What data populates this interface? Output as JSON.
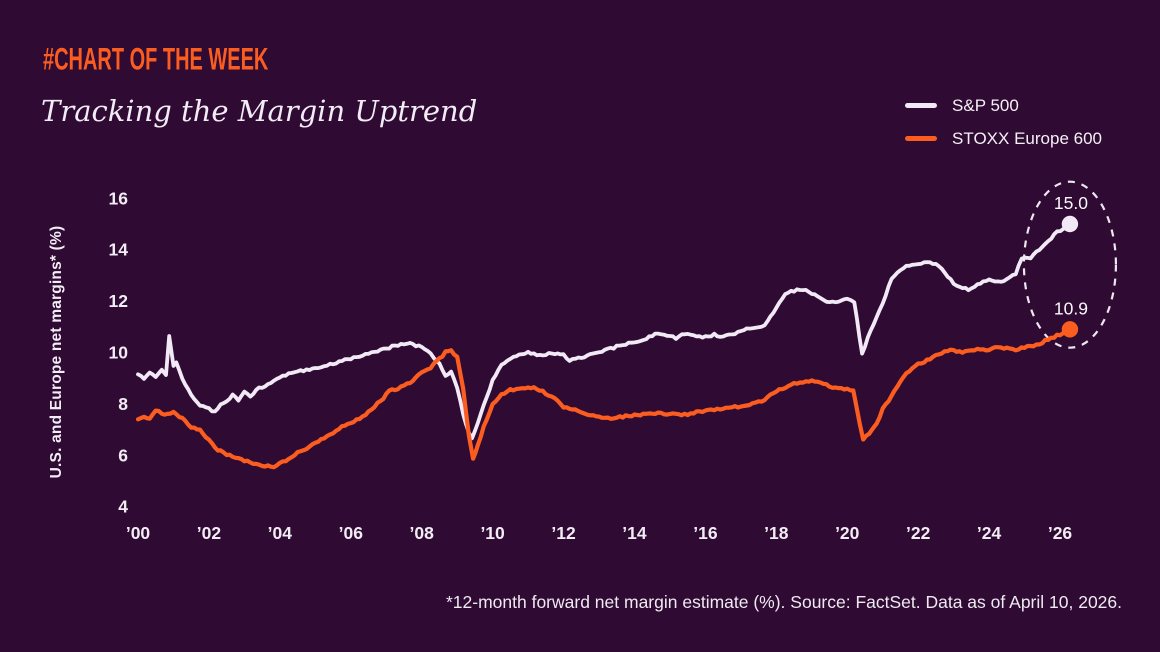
{
  "header": {
    "kicker": "#CHART OF THE WEEK",
    "title": "Tracking the Margin Uptrend"
  },
  "legend": {
    "items": [
      {
        "label": "S&P 500",
        "color": "#F2E9F7"
      },
      {
        "label": "STOXX Europe 600",
        "color": "#FB5D20"
      }
    ]
  },
  "footer": {
    "note": "*12-month forward net margin estimate (%). Source: FactSet. Data as of April 10, 2026."
  },
  "colors": {
    "background": "#2F0A33",
    "accent_orange": "#FB5D20",
    "line_white": "#F2E9F7",
    "text_light": "#F2ECF4",
    "ellipse_stroke": "#EDE7F2"
  },
  "chart_data": {
    "type": "line",
    "title": "Tracking the Margin Uptrend",
    "xlabel": "",
    "ylabel": "U.S. and Europe net margins* (%)",
    "xlim": [
      2000,
      2026.4
    ],
    "ylim": [
      4,
      16
    ],
    "grid": false,
    "legend_position": "top-right",
    "x_ticks": {
      "values": [
        2000,
        2002,
        2004,
        2006,
        2008,
        2010,
        2012,
        2014,
        2016,
        2018,
        2020,
        2022,
        2024,
        2026
      ],
      "labels": [
        "’00",
        "’02",
        "’04",
        "’06",
        "’08",
        "’10",
        "’12",
        "’14",
        "’16",
        "’18",
        "’20",
        "’22",
        "’24",
        "’26"
      ]
    },
    "y_ticks": [
      4,
      6,
      8,
      10,
      12,
      14,
      16
    ],
    "annotation": {
      "shape": "dashed-ellipse",
      "meaning": "highlights latest values"
    },
    "series": [
      {
        "name": "S&P 500",
        "color": "#F2E9F7",
        "end_label": "15.0",
        "end_value": 15.0,
        "points": [
          [
            2000.0,
            9.15
          ],
          [
            2000.17,
            9.0
          ],
          [
            2000.33,
            9.25
          ],
          [
            2000.5,
            9.05
          ],
          [
            2000.67,
            9.3
          ],
          [
            2000.79,
            9.1
          ],
          [
            2000.88,
            10.6
          ],
          [
            2001.0,
            9.5
          ],
          [
            2001.08,
            9.6
          ],
          [
            2001.25,
            9.0
          ],
          [
            2001.5,
            8.35
          ],
          [
            2001.75,
            7.95
          ],
          [
            2002.0,
            7.8
          ],
          [
            2002.17,
            7.7
          ],
          [
            2002.33,
            7.95
          ],
          [
            2002.5,
            8.1
          ],
          [
            2002.67,
            8.35
          ],
          [
            2002.83,
            8.15
          ],
          [
            2003.0,
            8.45
          ],
          [
            2003.17,
            8.25
          ],
          [
            2003.33,
            8.55
          ],
          [
            2003.58,
            8.7
          ],
          [
            2003.83,
            8.9
          ],
          [
            2004.0,
            9.05
          ],
          [
            2004.33,
            9.2
          ],
          [
            2004.67,
            9.3
          ],
          [
            2005.0,
            9.4
          ],
          [
            2005.33,
            9.5
          ],
          [
            2005.67,
            9.65
          ],
          [
            2006.0,
            9.75
          ],
          [
            2006.33,
            9.9
          ],
          [
            2006.67,
            10.05
          ],
          [
            2007.0,
            10.15
          ],
          [
            2007.33,
            10.3
          ],
          [
            2007.67,
            10.35
          ],
          [
            2008.0,
            10.2
          ],
          [
            2008.25,
            9.95
          ],
          [
            2008.5,
            9.55
          ],
          [
            2008.67,
            9.1
          ],
          [
            2008.83,
            9.25
          ],
          [
            2009.0,
            8.65
          ],
          [
            2009.17,
            7.6
          ],
          [
            2009.33,
            6.85
          ],
          [
            2009.42,
            6.65
          ],
          [
            2009.58,
            7.25
          ],
          [
            2009.75,
            7.95
          ],
          [
            2010.0,
            8.9
          ],
          [
            2010.25,
            9.5
          ],
          [
            2010.5,
            9.75
          ],
          [
            2010.75,
            9.9
          ],
          [
            2011.0,
            10.0
          ],
          [
            2011.33,
            9.9
          ],
          [
            2011.67,
            9.95
          ],
          [
            2012.0,
            9.9
          ],
          [
            2012.17,
            9.7
          ],
          [
            2012.42,
            9.8
          ],
          [
            2012.75,
            9.9
          ],
          [
            2013.0,
            10.0
          ],
          [
            2013.33,
            10.15
          ],
          [
            2013.67,
            10.3
          ],
          [
            2014.0,
            10.4
          ],
          [
            2014.33,
            10.55
          ],
          [
            2014.67,
            10.75
          ],
          [
            2015.0,
            10.65
          ],
          [
            2015.17,
            10.55
          ],
          [
            2015.42,
            10.75
          ],
          [
            2015.75,
            10.65
          ],
          [
            2016.0,
            10.6
          ],
          [
            2016.25,
            10.7
          ],
          [
            2016.5,
            10.6
          ],
          [
            2016.75,
            10.7
          ],
          [
            2017.0,
            10.85
          ],
          [
            2017.33,
            10.95
          ],
          [
            2017.67,
            11.05
          ],
          [
            2018.0,
            11.75
          ],
          [
            2018.25,
            12.3
          ],
          [
            2018.5,
            12.4
          ],
          [
            2018.75,
            12.45
          ],
          [
            2019.0,
            12.3
          ],
          [
            2019.25,
            12.1
          ],
          [
            2019.5,
            11.95
          ],
          [
            2019.75,
            12.0
          ],
          [
            2020.0,
            12.05
          ],
          [
            2020.2,
            11.95
          ],
          [
            2020.42,
            9.95
          ],
          [
            2020.58,
            10.55
          ],
          [
            2020.75,
            11.15
          ],
          [
            2021.0,
            11.9
          ],
          [
            2021.25,
            12.9
          ],
          [
            2021.5,
            13.2
          ],
          [
            2021.75,
            13.4
          ],
          [
            2022.0,
            13.45
          ],
          [
            2022.25,
            13.5
          ],
          [
            2022.5,
            13.45
          ],
          [
            2022.75,
            13.1
          ],
          [
            2023.0,
            12.7
          ],
          [
            2023.25,
            12.5
          ],
          [
            2023.42,
            12.45
          ],
          [
            2023.67,
            12.65
          ],
          [
            2024.0,
            12.85
          ],
          [
            2024.25,
            12.75
          ],
          [
            2024.5,
            12.85
          ],
          [
            2024.75,
            13.05
          ],
          [
            2024.92,
            13.65
          ],
          [
            2025.17,
            13.7
          ],
          [
            2025.42,
            14.0
          ],
          [
            2025.67,
            14.35
          ],
          [
            2025.92,
            14.7
          ],
          [
            2026.1,
            14.8
          ],
          [
            2026.28,
            15.0
          ]
        ]
      },
      {
        "name": "STOXX Europe 600",
        "color": "#FB5D20",
        "end_label": "10.9",
        "end_value": 10.9,
        "points": [
          [
            2000.0,
            7.4
          ],
          [
            2000.17,
            7.5
          ],
          [
            2000.33,
            7.45
          ],
          [
            2000.5,
            7.75
          ],
          [
            2000.67,
            7.65
          ],
          [
            2000.83,
            7.6
          ],
          [
            2001.0,
            7.65
          ],
          [
            2001.17,
            7.5
          ],
          [
            2001.33,
            7.35
          ],
          [
            2001.5,
            7.1
          ],
          [
            2001.75,
            7.0
          ],
          [
            2002.0,
            6.6
          ],
          [
            2002.17,
            6.3
          ],
          [
            2002.33,
            6.15
          ],
          [
            2002.5,
            6.05
          ],
          [
            2002.75,
            5.9
          ],
          [
            2003.0,
            5.8
          ],
          [
            2003.25,
            5.65
          ],
          [
            2003.5,
            5.6
          ],
          [
            2003.83,
            5.55
          ],
          [
            2004.0,
            5.7
          ],
          [
            2004.25,
            5.85
          ],
          [
            2004.5,
            6.1
          ],
          [
            2004.75,
            6.25
          ],
          [
            2005.0,
            6.5
          ],
          [
            2005.25,
            6.65
          ],
          [
            2005.5,
            6.85
          ],
          [
            2005.75,
            7.1
          ],
          [
            2006.0,
            7.25
          ],
          [
            2006.33,
            7.5
          ],
          [
            2006.67,
            7.9
          ],
          [
            2006.92,
            8.2
          ],
          [
            2007.08,
            8.5
          ],
          [
            2007.33,
            8.6
          ],
          [
            2007.67,
            8.85
          ],
          [
            2008.0,
            9.2
          ],
          [
            2008.25,
            9.4
          ],
          [
            2008.5,
            9.75
          ],
          [
            2008.67,
            10.0
          ],
          [
            2008.83,
            10.1
          ],
          [
            2009.0,
            9.8
          ],
          [
            2009.17,
            8.6
          ],
          [
            2009.33,
            6.8
          ],
          [
            2009.45,
            5.9
          ],
          [
            2009.58,
            6.35
          ],
          [
            2009.75,
            7.1
          ],
          [
            2010.0,
            8.0
          ],
          [
            2010.25,
            8.35
          ],
          [
            2010.5,
            8.55
          ],
          [
            2010.75,
            8.6
          ],
          [
            2011.08,
            8.65
          ],
          [
            2011.33,
            8.55
          ],
          [
            2011.58,
            8.35
          ],
          [
            2011.83,
            8.1
          ],
          [
            2012.0,
            7.9
          ],
          [
            2012.33,
            7.75
          ],
          [
            2012.67,
            7.6
          ],
          [
            2013.0,
            7.5
          ],
          [
            2013.33,
            7.45
          ],
          [
            2013.67,
            7.5
          ],
          [
            2014.0,
            7.55
          ],
          [
            2014.33,
            7.6
          ],
          [
            2014.67,
            7.65
          ],
          [
            2015.0,
            7.6
          ],
          [
            2015.33,
            7.55
          ],
          [
            2015.67,
            7.65
          ],
          [
            2016.0,
            7.75
          ],
          [
            2016.33,
            7.8
          ],
          [
            2016.67,
            7.85
          ],
          [
            2017.0,
            7.9
          ],
          [
            2017.33,
            8.0
          ],
          [
            2017.67,
            8.15
          ],
          [
            2018.0,
            8.5
          ],
          [
            2018.33,
            8.7
          ],
          [
            2018.67,
            8.85
          ],
          [
            2019.0,
            8.9
          ],
          [
            2019.25,
            8.85
          ],
          [
            2019.5,
            8.7
          ],
          [
            2019.75,
            8.6
          ],
          [
            2020.0,
            8.55
          ],
          [
            2020.17,
            8.5
          ],
          [
            2020.45,
            6.6
          ],
          [
            2020.62,
            6.85
          ],
          [
            2020.83,
            7.25
          ],
          [
            2021.0,
            7.8
          ],
          [
            2021.25,
            8.3
          ],
          [
            2021.5,
            8.9
          ],
          [
            2021.75,
            9.3
          ],
          [
            2022.0,
            9.55
          ],
          [
            2022.25,
            9.7
          ],
          [
            2022.5,
            9.9
          ],
          [
            2022.83,
            10.05
          ],
          [
            2023.0,
            10.1
          ],
          [
            2023.25,
            10.0
          ],
          [
            2023.5,
            10.1
          ],
          [
            2023.75,
            10.15
          ],
          [
            2024.0,
            10.1
          ],
          [
            2024.25,
            10.2
          ],
          [
            2024.5,
            10.15
          ],
          [
            2024.75,
            10.1
          ],
          [
            2025.0,
            10.2
          ],
          [
            2025.25,
            10.25
          ],
          [
            2025.5,
            10.4
          ],
          [
            2025.75,
            10.55
          ],
          [
            2026.0,
            10.7
          ],
          [
            2026.28,
            10.9
          ]
        ]
      }
    ]
  }
}
